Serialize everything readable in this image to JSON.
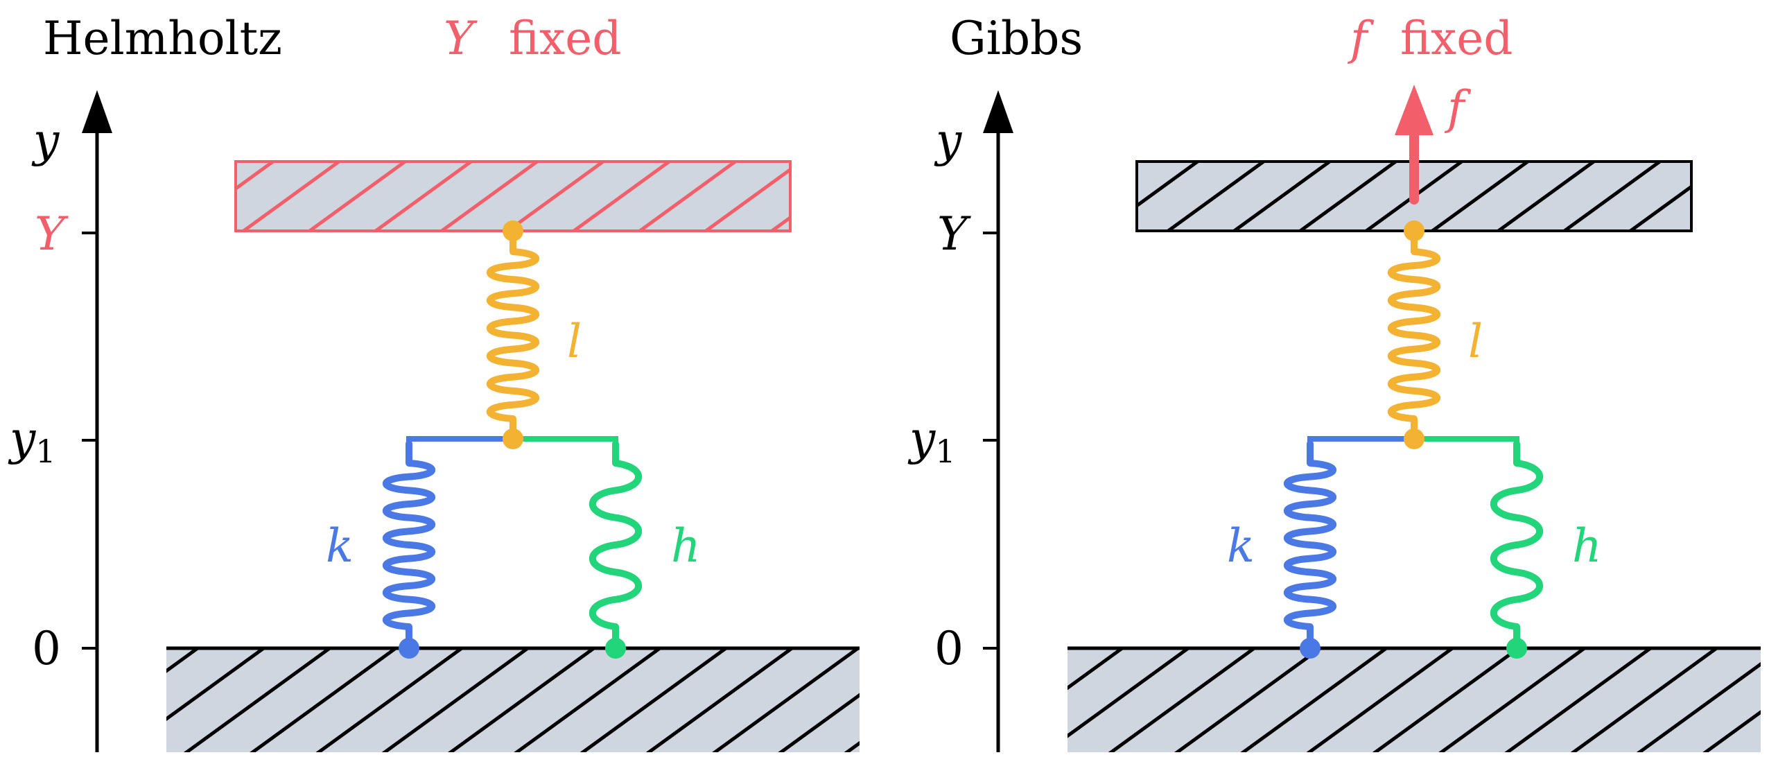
{
  "panels": [
    {
      "id": "helmholtz",
      "title": "Helmholtz",
      "fixed_var": "Y",
      "fixed_word": "fixed",
      "axis_name": "y",
      "ticks": {
        "Y": "Y",
        "y1_base": "y",
        "y1_sub": "1",
        "zero": "0"
      },
      "spring_labels": {
        "l": "l",
        "k": "k",
        "h": "h"
      },
      "top_plate_color": "#f25f6a",
      "y_tick_color": "#f25f6a"
    },
    {
      "id": "gibbs",
      "title": "Gibbs",
      "fixed_var": "f",
      "fixed_word": "fixed",
      "axis_name": "y",
      "ticks": {
        "Y": "Y",
        "y1_base": "y",
        "y1_sub": "1",
        "zero": "0"
      },
      "spring_labels": {
        "l": "l",
        "k": "k",
        "h": "h"
      },
      "force_label": "f",
      "top_plate_color": "#000000",
      "y_tick_color": "#000000"
    }
  ],
  "colors": {
    "accent": "#f25f6a",
    "spring_l": "#f4b233",
    "spring_k": "#4a78e4",
    "spring_h": "#22d47a",
    "plate_fill": "#d0d6df",
    "ink": "#000000"
  }
}
